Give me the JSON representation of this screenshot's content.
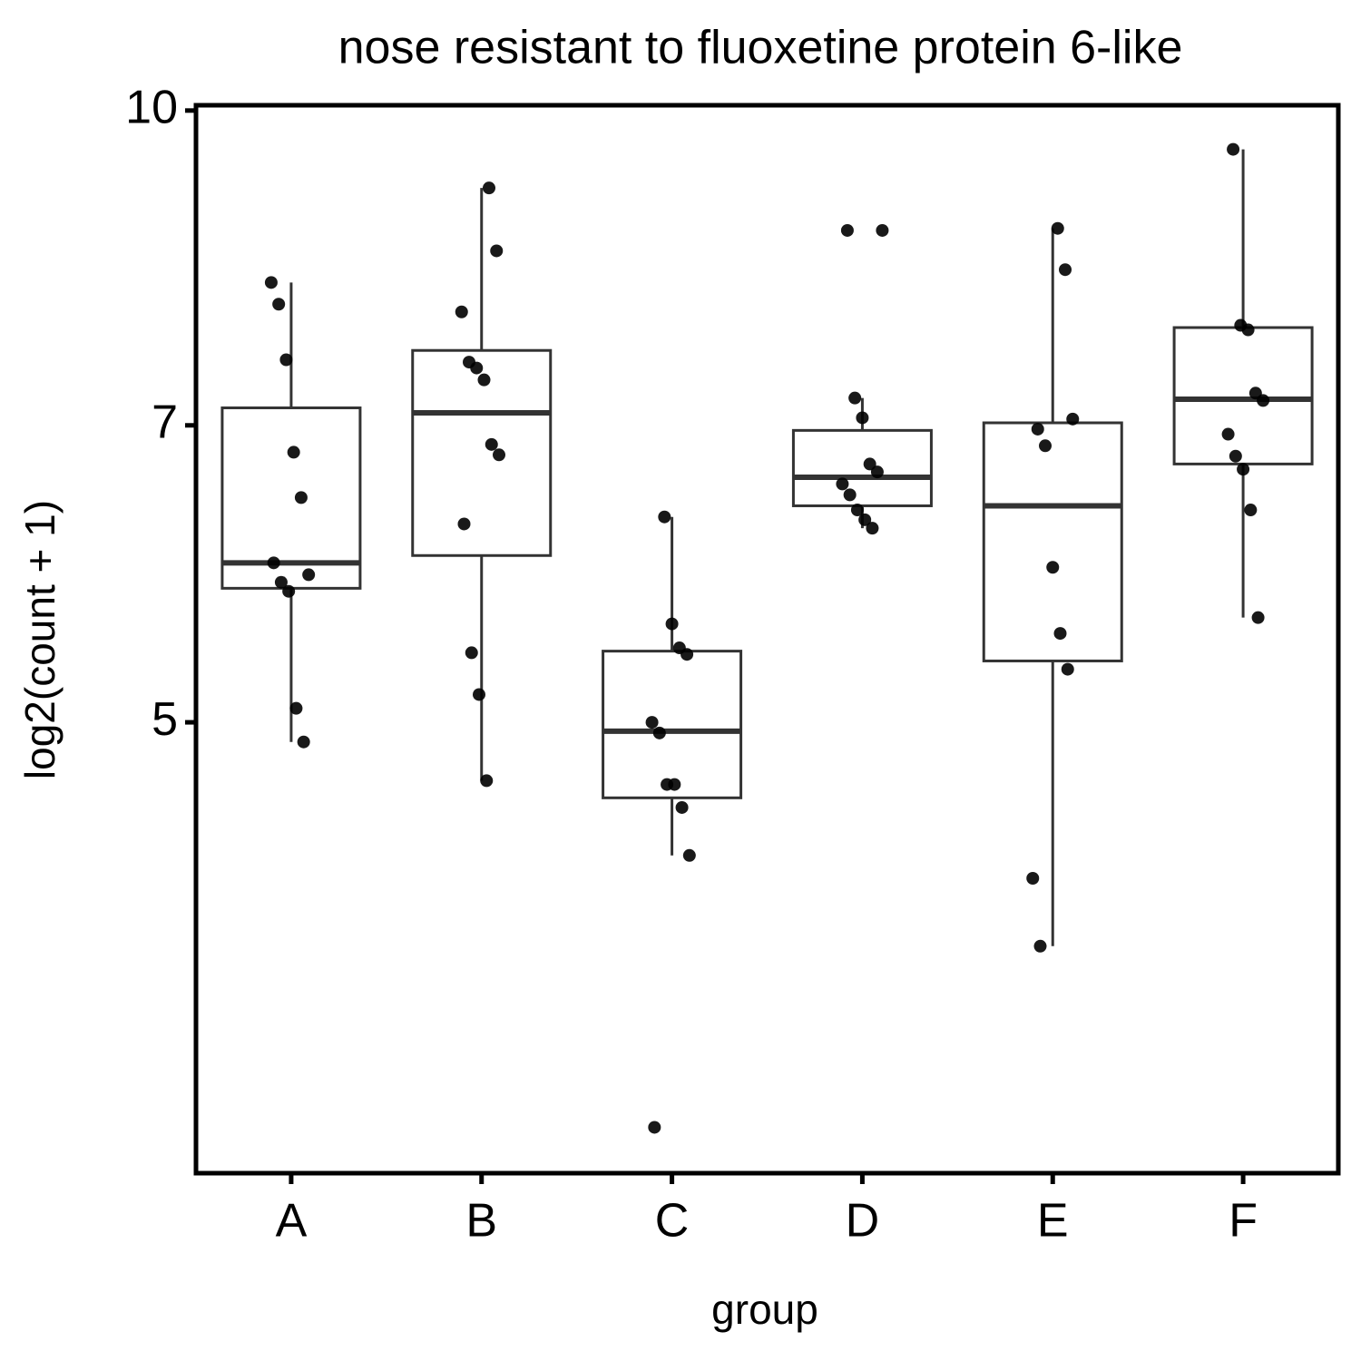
{
  "chart_data": {
    "type": "box",
    "title": "nose resistant to fluoxetine protein 6-like",
    "x_label": "group",
    "y_label": "log2(count + 1)",
    "categories": [
      "A",
      "B",
      "C",
      "D",
      "E",
      "F"
    ],
    "boxes": [
      {
        "whisker_low": 4.89,
        "q1": 5.82,
        "median": 5.99,
        "q3": 7.14,
        "whisker_high": 8.23
      },
      {
        "whisker_low": 4.68,
        "q1": 6.04,
        "median": 7.1,
        "q3": 7.62,
        "whisker_high": 9.16
      },
      {
        "whisker_low": 4.3,
        "q1": 4.59,
        "median": 4.95,
        "q3": 5.42,
        "whisker_high": 6.31
      },
      {
        "whisker_low": 6.23,
        "q1": 6.39,
        "median": 6.6,
        "q3": 6.96,
        "whisker_high": 7.22
      },
      {
        "whisker_low": 3.88,
        "q1": 5.36,
        "median": 6.39,
        "q3": 7.02,
        "whisker_high": 8.75
      },
      {
        "whisker_low": 5.63,
        "q1": 6.7,
        "median": 7.21,
        "q3": 7.82,
        "whisker_high": 9.57
      }
    ],
    "points": [
      [
        8.23,
        8.03,
        7.54,
        6.79,
        6.45,
        5.91,
        5.99,
        5.86,
        5.8,
        5.08,
        4.89
      ],
      [
        9.16,
        8.53,
        7.96,
        7.52,
        7.47,
        7.37,
        6.85,
        6.77,
        6.26,
        5.41,
        5.16,
        4.68
      ],
      [
        6.31,
        5.59,
        5.44,
        5.4,
        5.0,
        4.94,
        4.66,
        4.66,
        4.54,
        4.3,
        3.16
      ],
      [
        8.73,
        8.73,
        7.22,
        7.06,
        6.7,
        6.64,
        6.55,
        6.47,
        6.36,
        6.29,
        6.23
      ],
      [
        8.75,
        8.35,
        7.05,
        6.97,
        6.84,
        5.96,
        5.53,
        5.31,
        4.19,
        3.88
      ],
      [
        9.57,
        7.84,
        7.8,
        7.26,
        7.2,
        6.93,
        6.76,
        6.66,
        6.36,
        5.63
      ]
    ],
    "point_color": "#000000",
    "box_color": "#333333",
    "log_scale": true,
    "ylim": [
      3.0,
      10.06
    ],
    "yticks": [
      5,
      7,
      10
    ]
  }
}
